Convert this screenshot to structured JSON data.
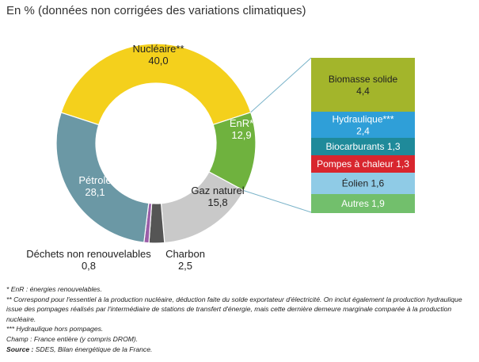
{
  "title": "En % (données non corrigées des variations climatiques)",
  "chart_data": {
    "type": "pie",
    "donut": true,
    "unit": "%",
    "slices": [
      {
        "name": "Nucléaire**",
        "value": 40.0,
        "value_label": "40,0",
        "color": "#f4d01c"
      },
      {
        "name": "EnR*",
        "value": 12.9,
        "value_label": "12,9",
        "color": "#6fb23e"
      },
      {
        "name": "Gaz naturel",
        "value": 15.8,
        "value_label": "15,8",
        "color": "#c9c9c9"
      },
      {
        "name": "Charbon",
        "value": 2.5,
        "value_label": "2,5",
        "color": "#555555"
      },
      {
        "name": "Déchets non renouvelables",
        "value": 0.8,
        "value_label": "0,8",
        "color": "#9b5ea8"
      },
      {
        "name": "Pétrole",
        "value": 28.1,
        "value_label": "28,1",
        "color": "#6b98a5"
      }
    ],
    "enr_breakdown": [
      {
        "name": "Biomasse solide",
        "value": 4.4,
        "value_label": "4,4",
        "color": "#a3b52b"
      },
      {
        "name": "Hydraulique***",
        "value": 2.4,
        "value_label": "2,4",
        "color": "#2f9fd8"
      },
      {
        "name": "Biocarburants",
        "value": 1.3,
        "value_label": "1,3",
        "color": "#1f8a9a"
      },
      {
        "name": "Pompes à chaleur",
        "value": 1.3,
        "value_label": "1,3",
        "color": "#d8262e"
      },
      {
        "name": "Éolien",
        "value": 1.6,
        "value_label": "1,6",
        "color": "#8fcbe6"
      },
      {
        "name": "Autres",
        "value": 1.9,
        "value_label": "1,9",
        "color": "#72bf6c"
      }
    ]
  },
  "notes": {
    "enr": "* EnR : énergies renouvelables.",
    "nuclear": "** Correspond pour l'essentiel à la production nucléaire, déduction faite du solde exportateur d'électricité. On inclut également la production hydraulique issue des pompages réalisés par l'intermédiaire de stations de transfert d'énergie, mais cette dernière demeure marginale comparée à la production nucléaire.",
    "hydro": "*** Hydraulique hors pompages.",
    "scope": "Champ : France entière (y compris DROM).",
    "source_label": "Source :",
    "source_text": " SDES, Bilan énergétique de la France."
  }
}
